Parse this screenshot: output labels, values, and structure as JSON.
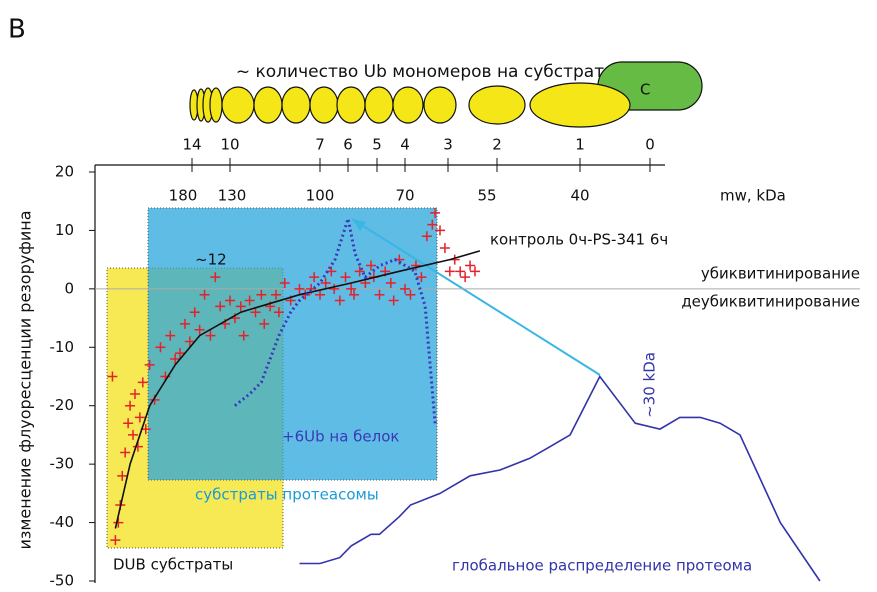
{
  "panel_label": "B",
  "chart_data": {
    "type": "scatter",
    "title": "~ количество Ub мономеров на субстрат",
    "domain_label": "C",
    "y_label": "изменение флуоресценции резоруфина",
    "ylim": [
      -50,
      20
    ],
    "yticks": [
      20,
      10,
      0,
      -10,
      -20,
      -30,
      -40,
      -50
    ],
    "ub_ticks": [
      14,
      10,
      7,
      6,
      5,
      4,
      3,
      2,
      1,
      0
    ],
    "mw_label": "mw, kDa",
    "mw_ticks": [
      180,
      130,
      100,
      70,
      55,
      40
    ],
    "zero_above": "убиквитинирование",
    "zero_below": "деубиквитинирование",
    "annotations": {
      "peak": "~12",
      "dub_box": "DUB субстраты",
      "proteasome_box": "субстраты протеасомы",
      "proteome_peak": "~30 kDa"
    },
    "series": [
      {
        "type": "scatter",
        "color": "#e3222b",
        "x": [
          252,
          249,
          246,
          244,
          242,
          239,
          236,
          234,
          231,
          229,
          226,
          224,
          221,
          218,
          214,
          209,
          203,
          198,
          193,
          188,
          183,
          178,
          173,
          168,
          163,
          158,
          152,
          147,
          142,
          137,
          132,
          129,
          127,
          126,
          124,
          122,
          120,
          119,
          117,
          115,
          114,
          112,
          110,
          107,
          105,
          103,
          102,
          100,
          98,
          96,
          95,
          93,
          91,
          89,
          88,
          86,
          84,
          82,
          81,
          79,
          77,
          75,
          74,
          72,
          70,
          69,
          68,
          67,
          66,
          65,
          64.5,
          63.6,
          62.7,
          61.8,
          60.9,
          59.9,
          59,
          58.1,
          57.2
        ],
        "values": [
          -15,
          -43,
          -40,
          -37,
          -32,
          -28,
          -23,
          -20,
          -25,
          -18,
          -27,
          -22,
          -16,
          -24,
          -13,
          -19,
          -10,
          -15,
          -8,
          -12,
          -11,
          -6,
          -9,
          -4,
          -7,
          -1,
          -8,
          2,
          -3,
          -6,
          -2,
          -5,
          -3,
          -8,
          -2,
          -4,
          -1,
          -6,
          -3,
          -1,
          -4,
          1,
          -2,
          0,
          -1,
          0,
          2,
          -1,
          1,
          3,
          0,
          -2,
          2,
          0,
          -1,
          3,
          1,
          4,
          2,
          -1,
          3,
          1,
          -2,
          5,
          0,
          -1,
          4,
          2,
          9,
          11,
          13,
          10,
          7,
          3,
          5,
          3,
          2,
          4,
          3
        ]
      },
      {
        "type": "line",
        "name": "контроль 0ч-PS-341 6ч",
        "color": "#111111",
        "x": [
          249,
          234,
          214,
          188,
          163,
          127,
          107,
          89,
          72,
          61.8,
          56.3
        ],
        "values": [
          -41,
          -30,
          -20,
          -13,
          -8,
          -4,
          -1,
          1,
          3,
          5,
          6.5
        ]
      },
      {
        "type": "dotted",
        "name": "+6Ub на белок",
        "color": "#3a3ab8",
        "x": [
          129,
          124,
          120,
          117,
          114,
          110,
          107,
          100,
          94.7,
          90.1,
          87.6,
          84.1,
          78.8,
          73.5,
          70,
          68.2,
          66.3,
          65.4,
          64.5
        ],
        "values": [
          -20,
          -18,
          -16,
          -12,
          -8,
          -4,
          -2,
          1,
          5,
          12,
          6,
          2,
          4,
          5,
          4,
          3,
          -3,
          -13,
          -23
        ]
      },
      {
        "type": "line",
        "name": "глобальное распределение протеома",
        "color": "#3333aa",
        "x": [
          107,
          100,
          93,
          89,
          82,
          79,
          72,
          69,
          63.6,
          58.1,
          52.9,
          48.1,
          44.8,
          41.6,
          36.8,
          31.1,
          27.1,
          23.9,
          20.6,
          17.4,
          14.2,
          7.7,
          1.3
        ],
        "values": [
          -47,
          -47,
          -46,
          -44,
          -42,
          -42,
          -39,
          -37,
          -35,
          -32,
          -31,
          -29,
          -27,
          -25,
          -15,
          -23,
          -24,
          -22,
          -22,
          -23,
          -25,
          -40,
          -50
        ]
      }
    ]
  }
}
